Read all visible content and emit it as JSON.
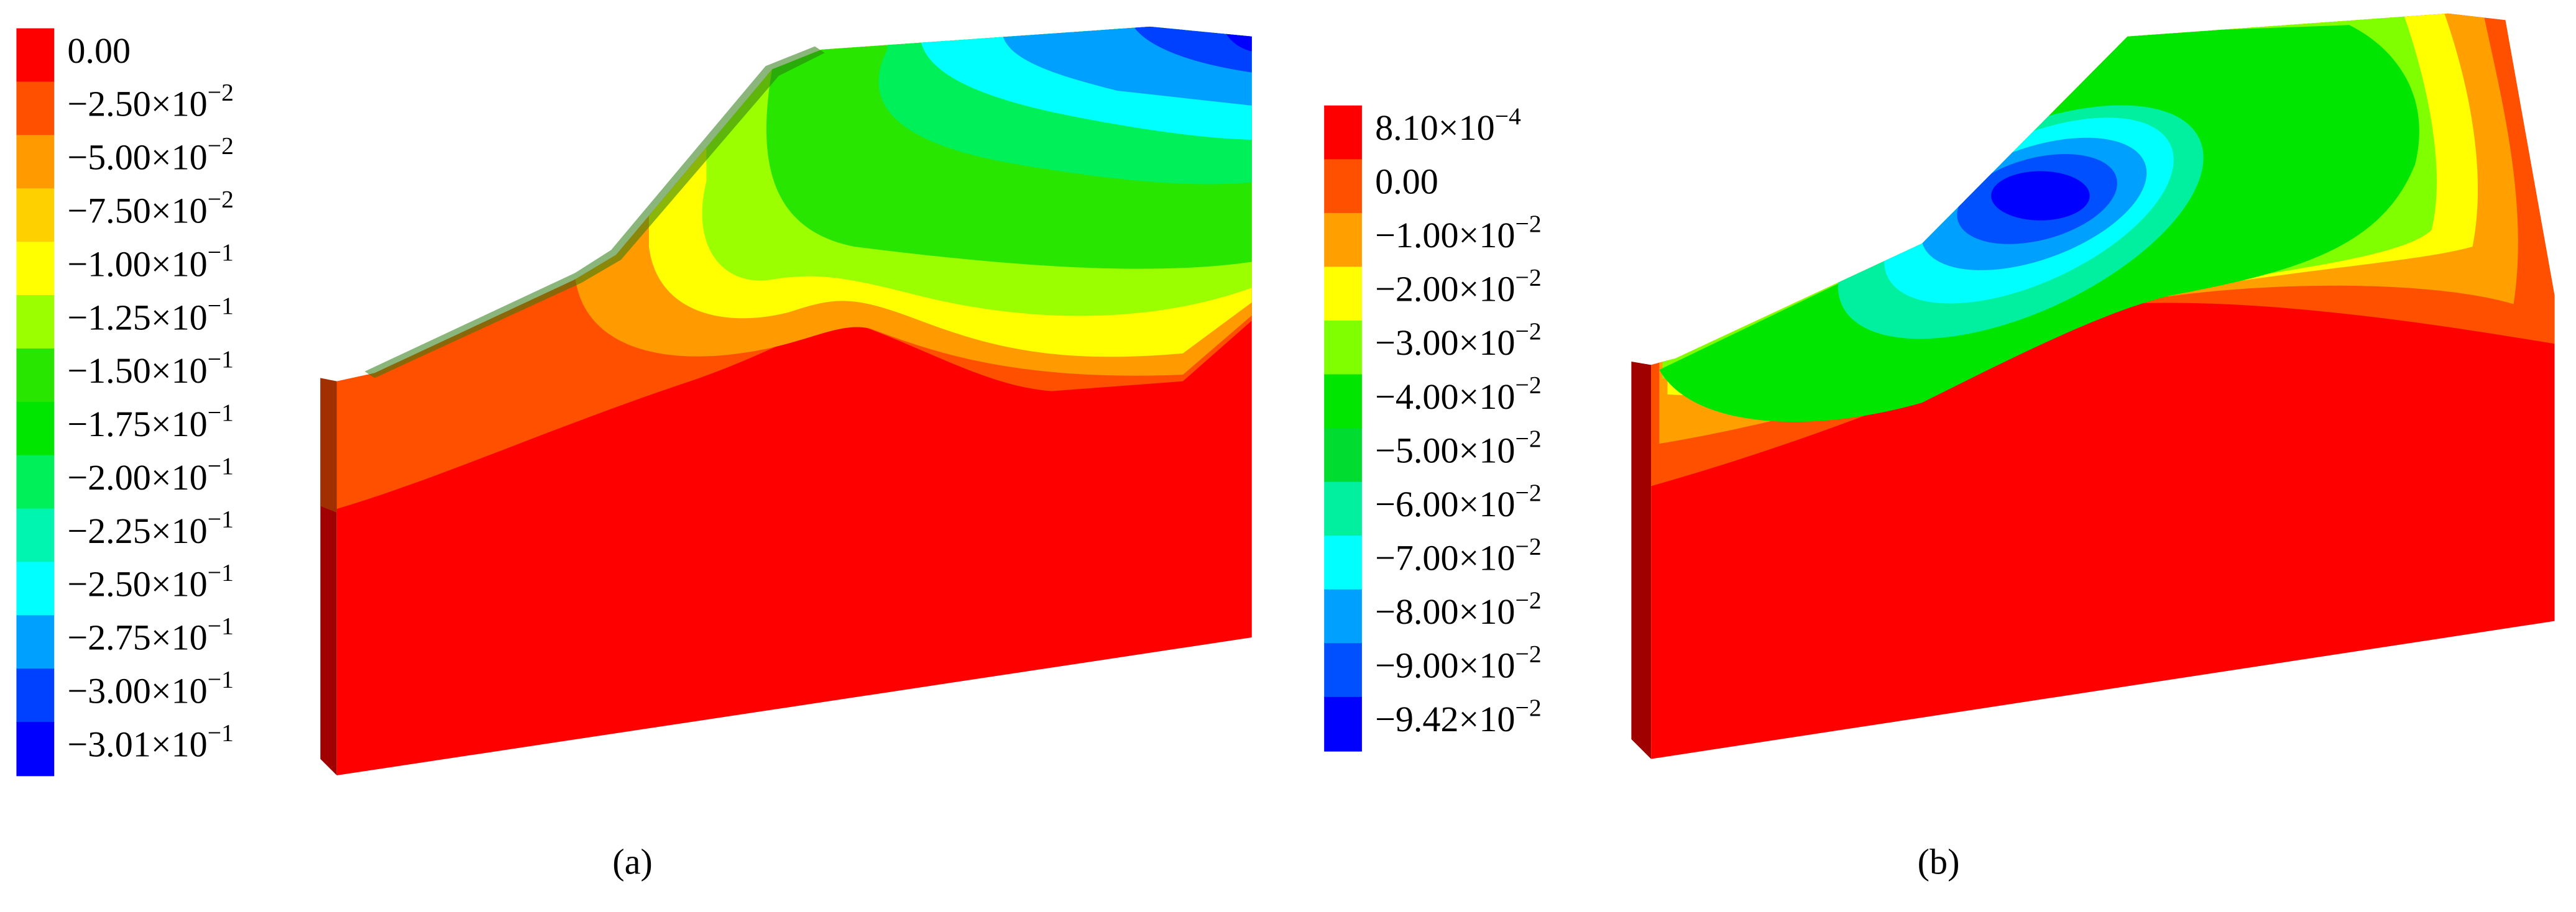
{
  "panel_a": {
    "legend": [
      {
        "label": {
          "base": "0.00"
        },
        "color": "#ff0000"
      },
      {
        "label": {
          "base": "−2.50×10",
          "exponent": "−2"
        },
        "color": "#ff5000"
      },
      {
        "label": {
          "base": "−5.00×10",
          "exponent": "−2"
        },
        "color": "#ff9a00"
      },
      {
        "label": {
          "base": "−7.50×10",
          "exponent": "−2"
        },
        "color": "#ffd000"
      },
      {
        "label": {
          "base": "−1.00×10",
          "exponent": "−1"
        },
        "color": "#ffff00"
      },
      {
        "label": {
          "base": "−1.25×10",
          "exponent": "−1"
        },
        "color": "#9cff00"
      },
      {
        "label": {
          "base": "−1.50×10",
          "exponent": "−1"
        },
        "color": "#29e600"
      },
      {
        "label": {
          "base": "−1.75×10",
          "exponent": "−1"
        },
        "color": "#00e600"
      },
      {
        "label": {
          "base": "−2.00×10",
          "exponent": "−1"
        },
        "color": "#00f05a"
      },
      {
        "label": {
          "base": "−2.25×10",
          "exponent": "−1"
        },
        "color": "#00f5b0"
      },
      {
        "label": {
          "base": "−2.50×10",
          "exponent": "−1"
        },
        "color": "#00ffff"
      },
      {
        "label": {
          "base": "−2.75×10",
          "exponent": "−1"
        },
        "color": "#00a0ff"
      },
      {
        "label": {
          "base": "−3.00×10",
          "exponent": "−1"
        },
        "color": "#0040ff"
      },
      {
        "label": {
          "base": "−3.01×10",
          "exponent": "−1"
        },
        "color": "#0000ff"
      }
    ],
    "caption": "(a)"
  },
  "panel_b": {
    "legend": [
      {
        "label": {
          "base": "8.10×10",
          "exponent": "−4"
        },
        "color": "#ff0000"
      },
      {
        "label": {
          "base": "0.00"
        },
        "color": "#ff5000"
      },
      {
        "label": {
          "base": "−1.00×10",
          "exponent": "−2"
        },
        "color": "#ffa000"
      },
      {
        "label": {
          "base": "−2.00×10",
          "exponent": "−2"
        },
        "color": "#ffff00"
      },
      {
        "label": {
          "base": "−3.00×10",
          "exponent": "−2"
        },
        "color": "#80ff00"
      },
      {
        "label": {
          "base": "−4.00×10",
          "exponent": "−2"
        },
        "color": "#00e600"
      },
      {
        "label": {
          "base": "−5.00×10",
          "exponent": "−2"
        },
        "color": "#00dd30"
      },
      {
        "label": {
          "base": "−6.00×10",
          "exponent": "−2"
        },
        "color": "#00f0a0"
      },
      {
        "label": {
          "base": "−7.00×10",
          "exponent": "−2"
        },
        "color": "#00ffff"
      },
      {
        "label": {
          "base": "−8.00×10",
          "exponent": "−2"
        },
        "color": "#00a0ff"
      },
      {
        "label": {
          "base": "−9.00×10",
          "exponent": "−2"
        },
        "color": "#0050ff"
      },
      {
        "label": {
          "base": "−9.42×10",
          "exponent": "−2"
        },
        "color": "#0000ff"
      }
    ],
    "caption": "(b)"
  }
}
